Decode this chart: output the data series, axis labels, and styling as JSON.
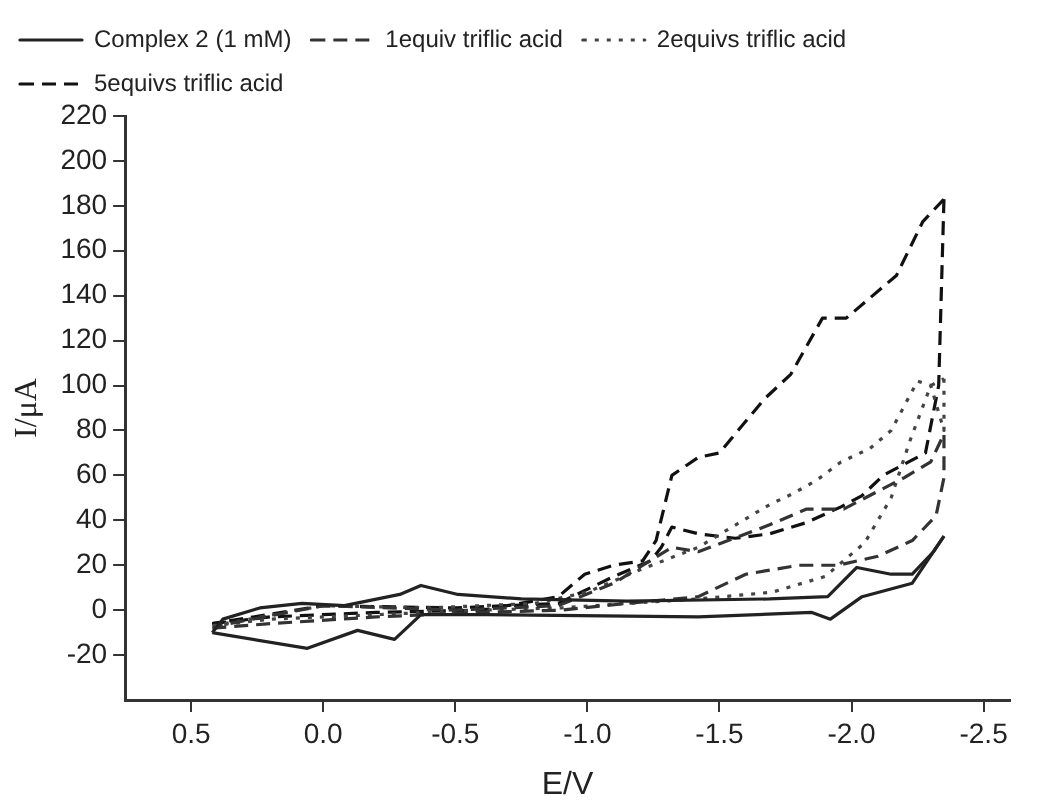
{
  "chart_data": {
    "type": "line",
    "xlabel": "E/V",
    "ylabel": "I/μA",
    "xlim": [
      0.75,
      -2.6
    ],
    "ylim": [
      -40,
      220
    ],
    "xticks": [
      0.5,
      {
        "value": 0,
        "label": "0.0"
      },
      -0.5,
      {
        "value": -1,
        "label": "-1.0"
      },
      -1.5,
      {
        "value": -2,
        "label": "-2.0"
      },
      -2.5
    ],
    "yticks": [
      -20,
      0,
      20,
      40,
      60,
      80,
      100,
      120,
      140,
      160,
      180,
      200,
      220
    ],
    "legend": "top left",
    "marker": "none",
    "grid": false,
    "series": [
      {
        "name": "Complex 2 (1 mM)",
        "color": "#222222",
        "line_style": "solid",
        "x": [
          0.42,
          0.06,
          -0.13,
          -0.27,
          -0.37,
          -0.62,
          -1.42,
          -1.85,
          -1.92,
          -2.04,
          -2.23,
          -2.35
        ],
        "values": [
          -10,
          -17,
          -9,
          -13,
          -2,
          -2,
          -3,
          -1,
          -4,
          6,
          12,
          33
        ]
      },
      {
        "color": "#222222",
        "line_style": "solid",
        "x": [
          -2.35,
          -2.31,
          -2.23,
          -2.15,
          -2.02,
          -1.91,
          -1.69,
          -1.15,
          -0.75,
          -0.51,
          -0.37,
          -0.29,
          -0.08,
          0.08,
          0.24,
          0.38,
          0.42
        ],
        "values": [
          33,
          26,
          16,
          16,
          19,
          6,
          5,
          4,
          5,
          7,
          11,
          7,
          2,
          3,
          1,
          -4,
          -10
        ]
      },
      {
        "name": "1equiv triflic acid",
        "color": "#333333",
        "line_style": "dashed",
        "x": [
          0.42,
          0.2,
          -0.2,
          -0.6,
          -0.9,
          -1.15,
          -1.42,
          -1.6,
          -1.8,
          -1.95,
          -2.1,
          -2.23,
          -2.32,
          -2.35,
          -2.35
        ],
        "values": [
          -8,
          -6,
          -3,
          -1,
          0,
          3,
          6,
          16,
          20,
          20,
          24,
          31,
          42,
          59,
          78
        ]
      },
      {
        "color": "#333333",
        "line_style": "dashed",
        "x": [
          -2.34,
          -2.3,
          -2.2,
          -1.97,
          -1.83,
          -1.69,
          -1.42,
          -1.32,
          -1.1,
          -0.89,
          -0.5,
          0,
          0.4
        ],
        "values": [
          76,
          66,
          59,
          45,
          45,
          38,
          26,
          28,
          12,
          2,
          0,
          2,
          -7
        ]
      },
      {
        "name": "2equivs triflic acid",
        "color": "#444444",
        "line_style": "dotted",
        "x": [
          0.42,
          0.2,
          -0.2,
          -0.6,
          -0.9,
          -1.15,
          -1.42,
          -1.7,
          -1.9,
          -2.05,
          -2.15,
          -2.22,
          -2.3,
          -2.35
        ],
        "values": [
          -7,
          -4,
          -2,
          0,
          1,
          3,
          5,
          8,
          15,
          30,
          50,
          75,
          100,
          103
        ]
      },
      {
        "color": "#444444",
        "line_style": "dotted",
        "x": [
          -2.35,
          -2.35,
          -2.3,
          -2.25,
          -2.15,
          -2.07,
          -1.96,
          -1.87,
          -1.78,
          -1.69,
          -1.42,
          -1.2,
          -1.0,
          -0.8,
          -0.4,
          0,
          0.42
        ],
        "values": [
          103,
          80,
          100,
          102,
          80,
          72,
          66,
          58,
          52,
          47,
          28,
          18,
          8,
          3,
          1,
          2,
          -7
        ]
      },
      {
        "name": "5equivs triflic acid",
        "color": "#111111",
        "line_style": "dashed",
        "x": [
          0.42,
          0.2,
          -0.2,
          -0.6,
          -0.89,
          -0.99,
          -1.1,
          -1.21,
          -1.26,
          -1.32,
          -1.42,
          -1.5,
          -1.67,
          -1.77,
          -1.89,
          -1.98,
          -2.17,
          -2.27,
          -2.35
        ],
        "values": [
          -6,
          -3,
          -1,
          0,
          6,
          16,
          20,
          22,
          31,
          60,
          68,
          70,
          94,
          105,
          130,
          130,
          149,
          173,
          183
        ]
      },
      {
        "color": "#111111",
        "line_style": "dashed",
        "x": [
          -2.35,
          -2.33,
          -2.28,
          -2.12,
          -2.04,
          -1.96,
          -1.83,
          -1.69,
          -1.56,
          -1.42,
          -1.32,
          -1.28,
          -1.24,
          -1.1,
          -0.89,
          -0.5,
          0,
          0.42
        ],
        "values": [
          183,
          100,
          70,
          60,
          51,
          46,
          39,
          34,
          32,
          34,
          37,
          28,
          22,
          15,
          3,
          1,
          2,
          -6
        ]
      }
    ]
  }
}
